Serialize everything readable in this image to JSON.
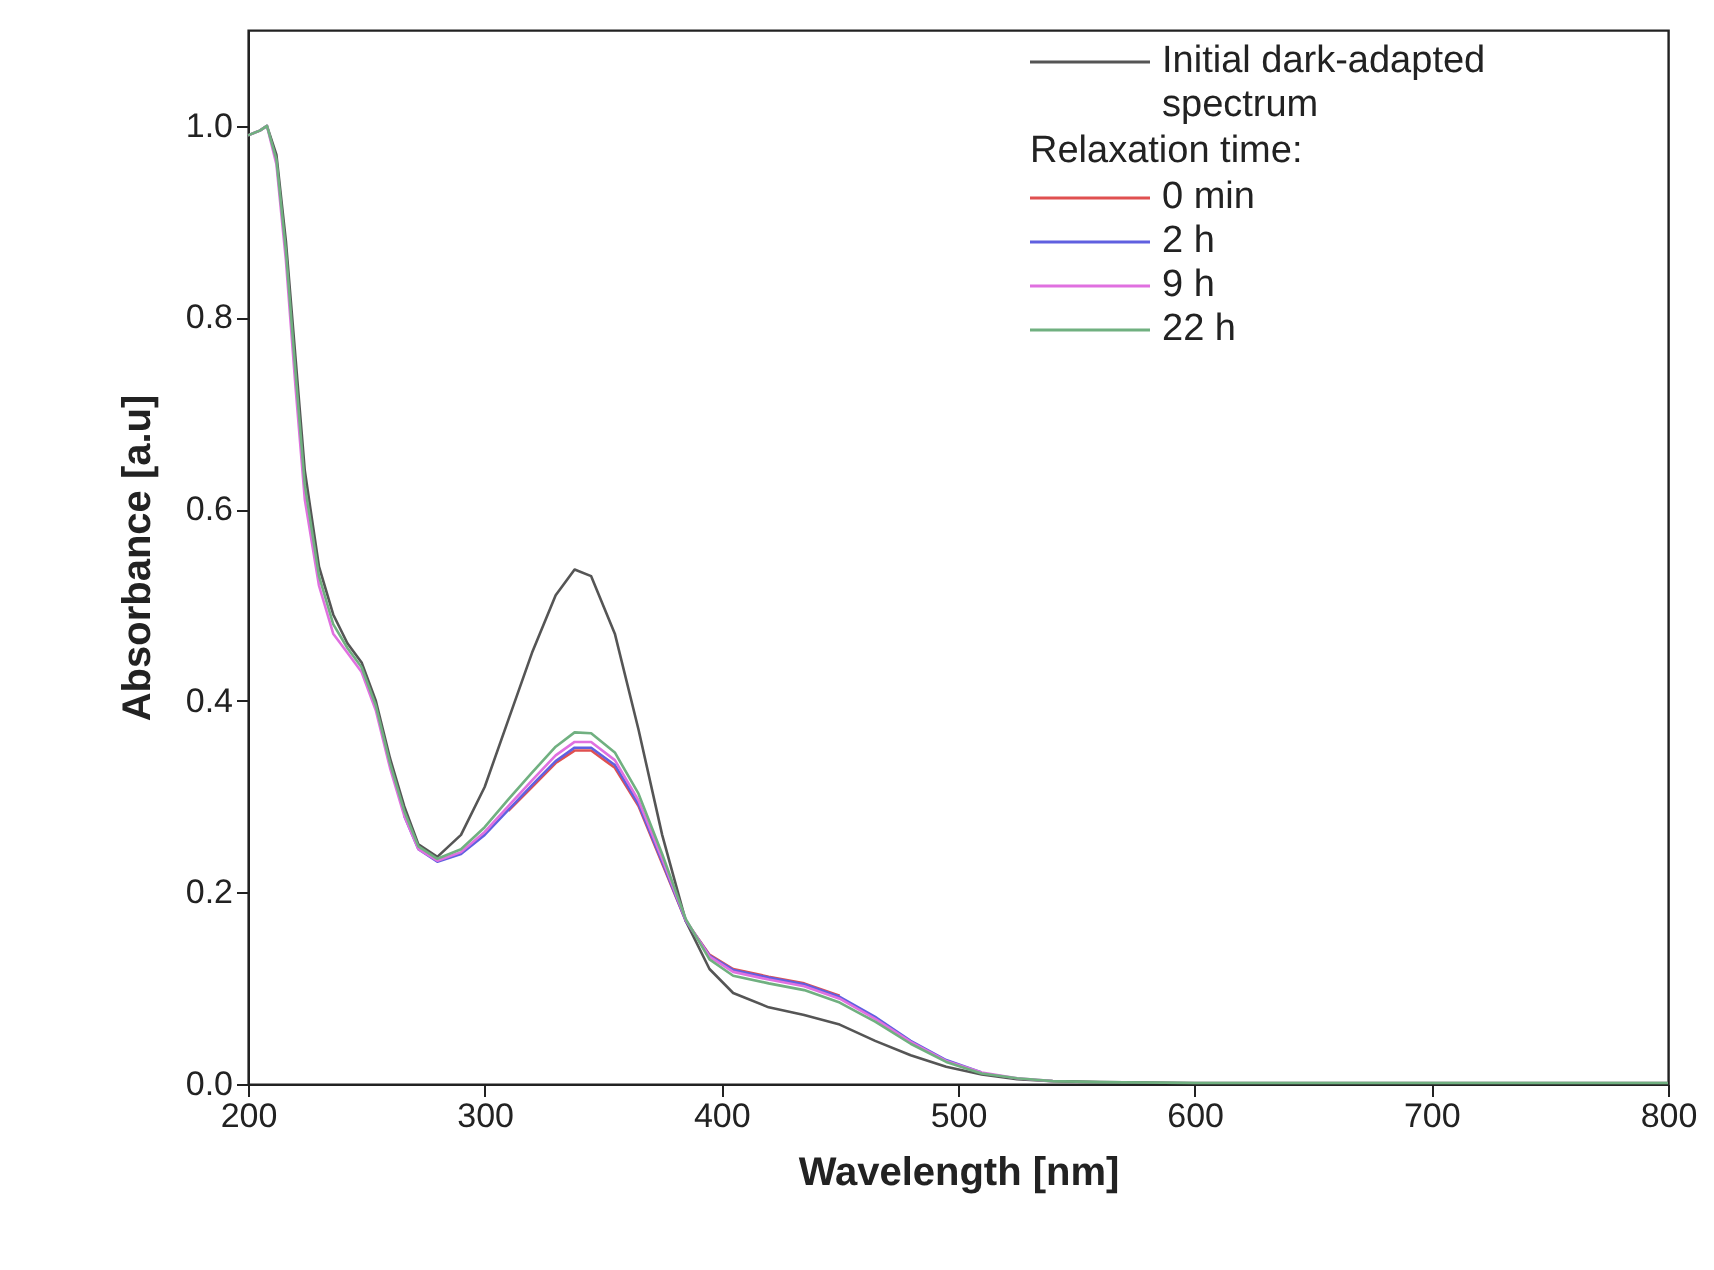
{
  "chart_data": {
    "type": "line",
    "xlabel": "Wavelength [nm]",
    "ylabel": "Absorbance [a.u]",
    "legend_title": "Relaxation time:",
    "legend": "top right",
    "grid": false,
    "line_style": "solid",
    "marker": "none",
    "xlim": [
      200,
      800
    ],
    "xticks": [
      200,
      300,
      400,
      500,
      600,
      700,
      800
    ],
    "ylim": [
      0,
      1.1
    ],
    "yticks": [
      {
        "value": 0,
        "label": "0.0"
      },
      {
        "value": 0.2,
        "label": "0.2"
      },
      {
        "value": 0.4,
        "label": "0.4"
      },
      {
        "value": 0.6,
        "label": "0.6"
      },
      {
        "value": 0.8,
        "label": "0.8"
      },
      {
        "value": 1,
        "label": "1.0"
      }
    ],
    "x": [
      200,
      205,
      208,
      212,
      216,
      220,
      224,
      230,
      236,
      242,
      248,
      254,
      260,
      266,
      272,
      280,
      290,
      300,
      310,
      320,
      330,
      338,
      345,
      355,
      365,
      375,
      385,
      395,
      405,
      420,
      435,
      450,
      465,
      480,
      495,
      510,
      525,
      540,
      560,
      600,
      700,
      800
    ],
    "series": [
      {
        "name": "Initial dark-adapted spectrum",
        "color": "#555555",
        "values": [
          0.99,
          0.995,
          1.0,
          0.97,
          0.88,
          0.76,
          0.64,
          0.54,
          0.49,
          0.46,
          0.44,
          0.4,
          0.34,
          0.29,
          0.25,
          0.237,
          0.26,
          0.31,
          0.38,
          0.45,
          0.51,
          0.537,
          0.53,
          0.47,
          0.37,
          0.26,
          0.17,
          0.12,
          0.095,
          0.08,
          0.072,
          0.062,
          0.045,
          0.03,
          0.018,
          0.01,
          0.005,
          0.003,
          0.002,
          0.001,
          0.001,
          0.001
        ]
      },
      {
        "name": "0 min",
        "color": "#e05050",
        "values": [
          null,
          null,
          null,
          null,
          null,
          null,
          null,
          null,
          null,
          null,
          null,
          null,
          null,
          null,
          null,
          null,
          null,
          null,
          0.285,
          0.31,
          0.335,
          0.348,
          0.348,
          0.33,
          0.29,
          0.23,
          0.17,
          0.135,
          0.12,
          0.112,
          0.105,
          0.092,
          null,
          null,
          null,
          null,
          null,
          null,
          null,
          null,
          null,
          null
        ]
      },
      {
        "name": "2 h",
        "color": "#6060e0",
        "values": [
          null,
          null,
          null,
          null,
          null,
          null,
          null,
          null,
          null,
          null,
          null,
          null,
          null,
          0.28,
          0.245,
          0.232,
          0.24,
          0.26,
          0.286,
          0.312,
          0.337,
          0.351,
          0.351,
          0.333,
          0.292,
          0.232,
          0.17,
          0.134,
          0.119,
          0.111,
          0.104,
          0.091,
          0.07,
          0.045,
          0.025,
          0.012,
          null,
          null,
          null,
          null,
          null,
          null
        ]
      },
      {
        "name": "9 h",
        "color": "#e070e0",
        "values": [
          0.99,
          0.995,
          1.0,
          0.96,
          0.86,
          0.73,
          0.61,
          0.52,
          0.47,
          0.45,
          0.43,
          0.39,
          0.33,
          0.28,
          0.245,
          0.233,
          0.242,
          0.263,
          0.29,
          0.317,
          0.343,
          0.357,
          0.357,
          0.338,
          0.296,
          0.235,
          0.171,
          0.133,
          0.117,
          0.109,
          0.102,
          0.089,
          0.068,
          0.044,
          0.024,
          0.012,
          0.006,
          0.003,
          null,
          null,
          null,
          null
        ]
      },
      {
        "name": "22 h",
        "color": "#70b080",
        "values": [
          0.99,
          0.995,
          1.0,
          0.965,
          0.87,
          0.745,
          0.625,
          0.53,
          0.48,
          0.455,
          0.435,
          0.395,
          0.335,
          0.285,
          0.248,
          0.235,
          0.245,
          0.268,
          0.297,
          0.325,
          0.352,
          0.367,
          0.366,
          0.346,
          0.303,
          0.24,
          0.172,
          0.13,
          0.113,
          0.105,
          0.098,
          0.085,
          0.065,
          0.042,
          0.023,
          0.011,
          0.006,
          0.003,
          0.002,
          0.001,
          0.001,
          0.001
        ]
      }
    ]
  }
}
